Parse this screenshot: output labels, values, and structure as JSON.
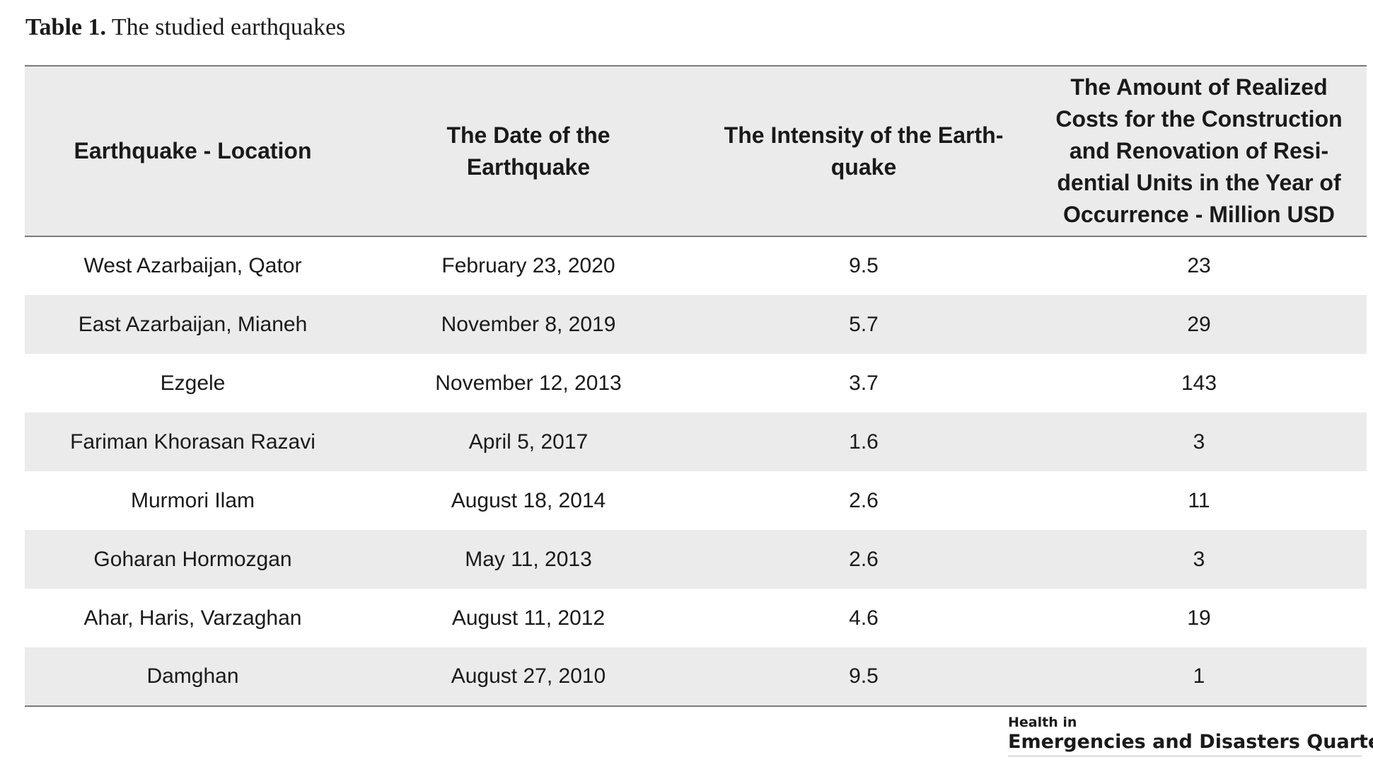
{
  "caption": {
    "label": "Table 1.",
    "text": "The studied earthquakes"
  },
  "table": {
    "headers": [
      "Earthquake - Location",
      "The Date of the Earthquake",
      "The Intensity of the Earth-quake",
      "The Amount of Realized Costs for the Construction and Renovation of Resi-dential Units in the Year of Occurrence - Million USD"
    ],
    "rows": [
      [
        "West Azarbaijan, Qator",
        "February 23, 2020",
        "9.5",
        "23"
      ],
      [
        "East Azarbaijan, Mianeh",
        "November 8, 2019",
        "5.7",
        "29"
      ],
      [
        "Ezgele",
        "November 12, 2013",
        "3.7",
        "143"
      ],
      [
        "Fariman Khorasan Razavi",
        "April 5, 2017",
        "1.6",
        "3"
      ],
      [
        "Murmori Ilam",
        "August 18, 2014",
        "2.6",
        "11"
      ],
      [
        "Goharan Hormozgan",
        "May 11, 2013",
        "2.6",
        "3"
      ],
      [
        "Ahar, Haris, Varzaghan",
        "August 11, 2012",
        "4.6",
        "19"
      ],
      [
        "Damghan",
        "August 27, 2010",
        "9.5",
        "1"
      ]
    ]
  },
  "logo": {
    "line1": "Health in",
    "line2": "Emergencies and Disasters Quarterly"
  }
}
